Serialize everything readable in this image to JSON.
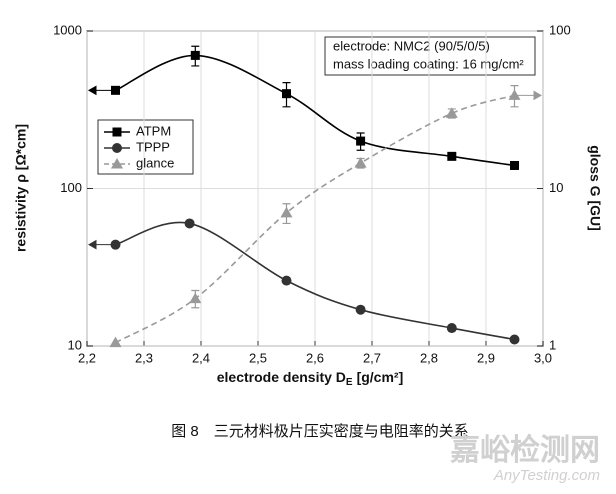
{
  "chart_data": {
    "type": "line",
    "xlabel": "electrode density D",
    "xlabel_sub": "E",
    "xlabel_unit": "[g/cm²]",
    "ylabel": "resistivity ρ [Ω*cm]",
    "y2label": "gloss G [GU]",
    "annotation": [
      "electrode: NMC2 (90/5/0/5)",
      "mass loading coating: 16 mg/cm²"
    ],
    "caption": "图 8　三元材料极片压实密度与电阻率的关系",
    "watermark": [
      "嘉峪检测网",
      "AnyTesting.com"
    ],
    "xlim": [
      2.2,
      3.0
    ],
    "xticks": [
      {
        "value": 2.2,
        "label": "2,2"
      },
      {
        "value": 2.3,
        "label": "2,3"
      },
      {
        "value": 2.4,
        "label": "2,4"
      },
      {
        "value": 2.5,
        "label": "2,5"
      },
      {
        "value": 2.6,
        "label": "2,6"
      },
      {
        "value": 2.7,
        "label": "2,7"
      },
      {
        "value": 2.8,
        "label": "2,8"
      },
      {
        "value": 2.9,
        "label": "2,9"
      },
      {
        "value": 3.0,
        "label": "3,0"
      }
    ],
    "ylim": [
      10,
      1000
    ],
    "yticks": [
      10,
      100,
      1000
    ],
    "log_y": true,
    "y2lim": [
      1,
      100
    ],
    "y2ticks": [
      1,
      10,
      100
    ],
    "log_y2": true,
    "grid": true,
    "legend": "upper left",
    "series": [
      {
        "name": "ATPM",
        "color": "#000000",
        "marker": "square",
        "dashed": false,
        "x": [
          2.25,
          2.39,
          2.55,
          2.68,
          2.84,
          2.95
        ],
        "values": [
          420,
          700,
          400,
          200,
          160,
          140
        ],
        "errors": [
          10,
          100,
          70,
          25,
          5,
          null
        ]
      },
      {
        "name": "TPPP",
        "color": "#333333",
        "marker": "circle",
        "dashed": false,
        "x": [
          2.25,
          2.38,
          2.55,
          2.68,
          2.84,
          2.95
        ],
        "values": [
          44,
          60,
          26,
          17,
          13,
          11
        ]
      },
      {
        "name": "glance",
        "color": "#999999",
        "marker": "triangle",
        "dashed": true,
        "axis": "y2",
        "x": [
          2.25,
          2.39,
          2.55,
          2.68,
          2.84,
          2.95
        ],
        "values": [
          1.05,
          2.0,
          7.0,
          14.5,
          30,
          39
        ],
        "errors": [
          null,
          0.25,
          1,
          1,
          2,
          6
        ]
      }
    ]
  }
}
